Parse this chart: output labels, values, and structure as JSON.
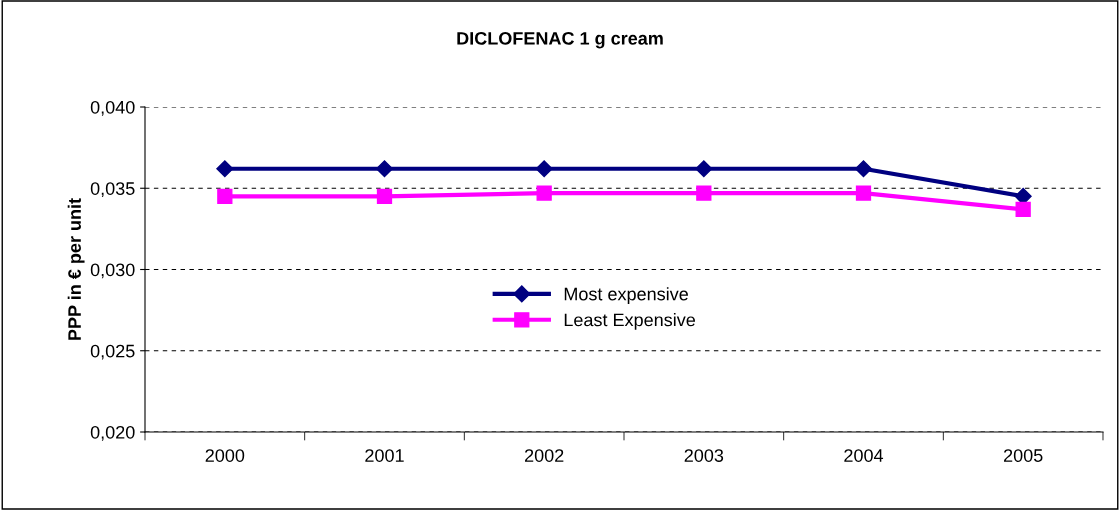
{
  "chart_data": {
    "type": "line",
    "title": "DICLOFENAC 1 g cream",
    "ylabel": "PPP in € per unit",
    "categories": [
      "2000",
      "2001",
      "2002",
      "2003",
      "2004",
      "2005"
    ],
    "series": [
      {
        "name": "Most expensive",
        "color": "#000080",
        "marker": "diamond",
        "values": [
          0.0362,
          0.0362,
          0.0362,
          0.0362,
          0.0362,
          0.0345
        ]
      },
      {
        "name": "Least Expensive",
        "color": "#ff00ff",
        "marker": "square",
        "values": [
          0.0345,
          0.0345,
          0.0347,
          0.0347,
          0.0347,
          0.0337
        ]
      }
    ],
    "ylim": [
      0.02,
      0.04
    ],
    "yticks": [
      {
        "value": 0.02,
        "label": "0,020"
      },
      {
        "value": 0.025,
        "label": "0,025"
      },
      {
        "value": 0.03,
        "label": "0,030"
      },
      {
        "value": 0.035,
        "label": "0,035"
      },
      {
        "value": 0.04,
        "label": "0,040"
      }
    ],
    "grid": "y",
    "line_style": "solid",
    "legend": "center"
  }
}
